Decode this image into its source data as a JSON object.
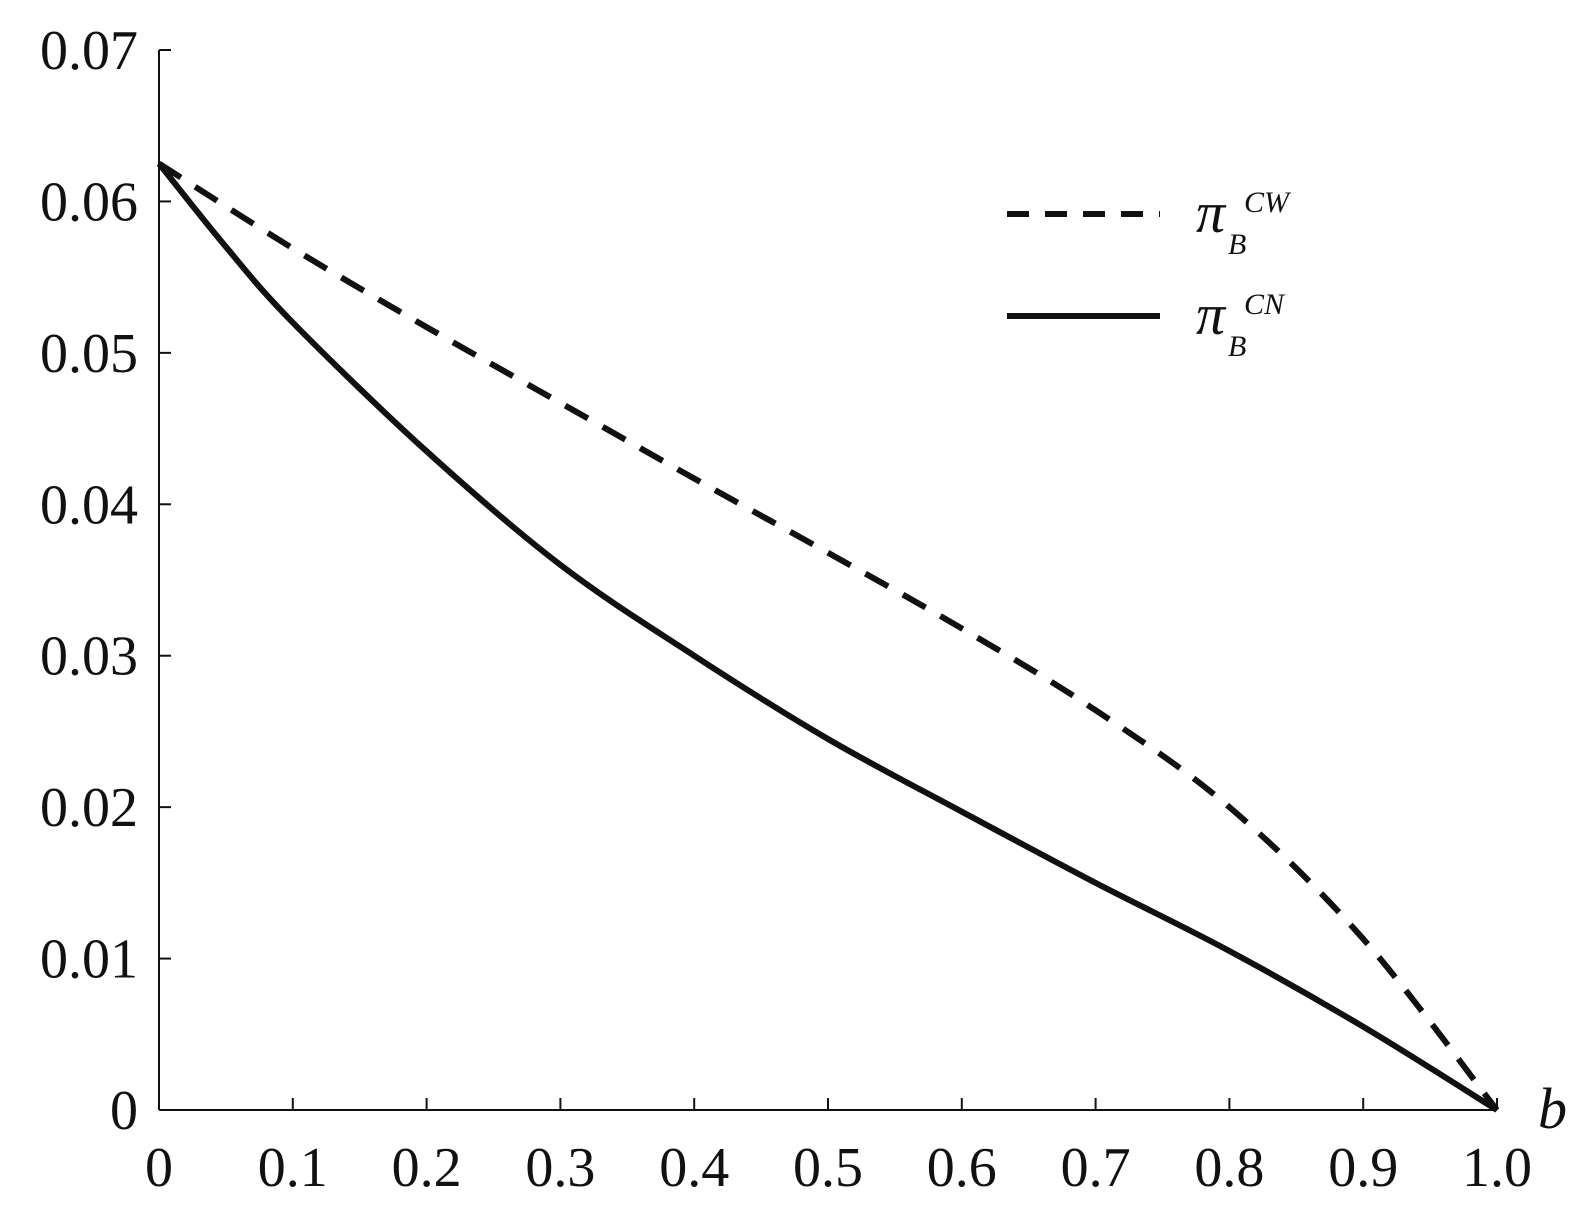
{
  "chart_data": {
    "type": "line",
    "x_axis": {
      "label": "b",
      "range": [
        0,
        1.0
      ],
      "ticks": [
        0,
        0.1,
        0.2,
        0.3,
        0.4,
        0.5,
        0.6,
        0.7,
        0.8,
        0.9,
        1.0
      ],
      "tick_labels": [
        "0",
        "0.1",
        "0.2",
        "0.3",
        "0.4",
        "0.5",
        "0.6",
        "0.7",
        "0.8",
        "0.9",
        "1.0"
      ]
    },
    "y_axis": {
      "label": "",
      "range": [
        0,
        0.07
      ],
      "ticks": [
        0,
        0.01,
        0.02,
        0.03,
        0.04,
        0.05,
        0.06,
        0.07
      ],
      "tick_labels": [
        "0",
        "0.01",
        "0.02",
        "0.03",
        "0.04",
        "0.05",
        "0.06",
        "0.07"
      ]
    },
    "grid": false,
    "legend_position": "top-right",
    "series": [
      {
        "legend": {
          "main": "π",
          "sub": "B",
          "sup": "CW"
        },
        "style": "dashed",
        "x": [
          0,
          0.1,
          0.2,
          0.3,
          0.4,
          0.5,
          0.6,
          0.7,
          0.8,
          0.9,
          1.0
        ],
        "y": [
          0.0625,
          0.0569,
          0.0517,
          0.0467,
          0.0417,
          0.0368,
          0.0318,
          0.0264,
          0.02,
          0.0113,
          0.0
        ]
      },
      {
        "legend": {
          "main": "π",
          "sub": "B",
          "sup": "CN"
        },
        "style": "solid",
        "x": [
          0,
          0.05,
          0.1,
          0.2,
          0.3,
          0.4,
          0.5,
          0.6,
          0.7,
          0.8,
          0.9,
          1.0
        ],
        "y": [
          0.0625,
          0.057,
          0.052,
          0.0435,
          0.036,
          0.03,
          0.0245,
          0.0197,
          0.015,
          0.0105,
          0.0055,
          0.0
        ]
      }
    ]
  }
}
